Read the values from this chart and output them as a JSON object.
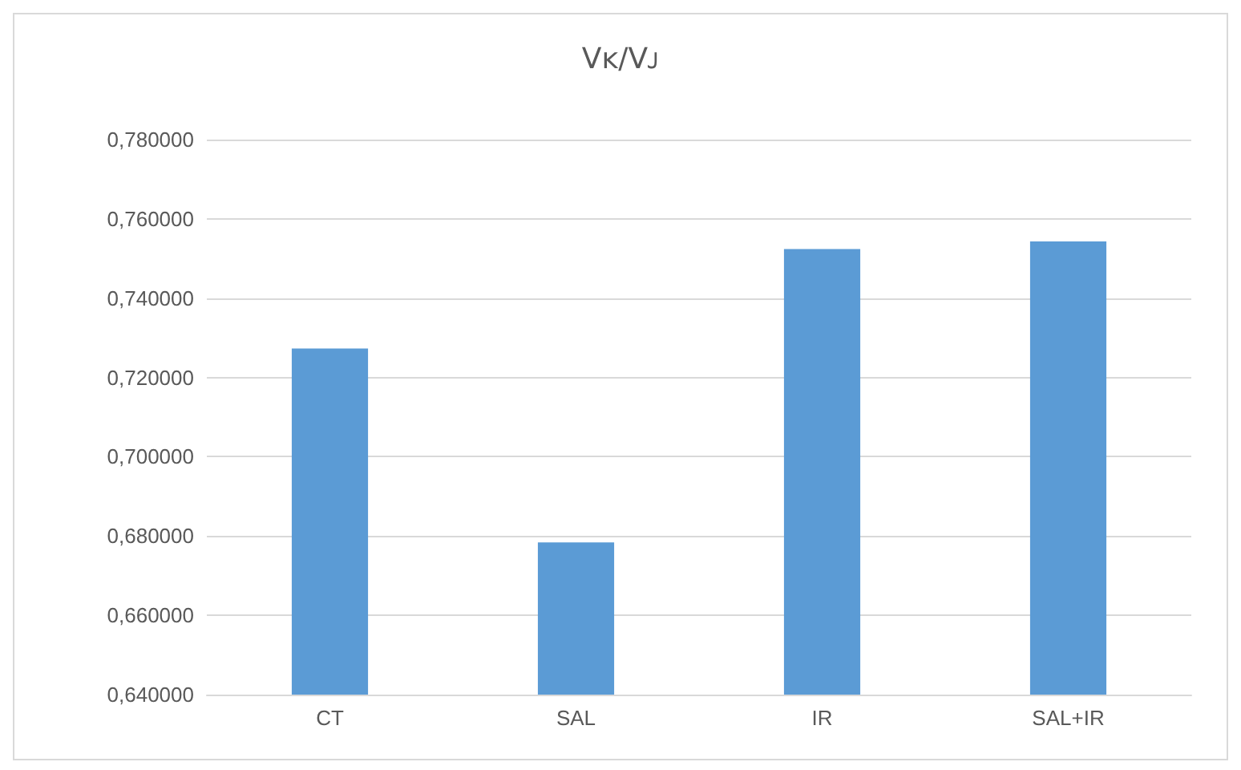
{
  "chart_data": {
    "type": "bar",
    "title": "Vᴋ/Vᴊ",
    "categories": [
      "CT",
      "SAL",
      "IR",
      "SAL+IR"
    ],
    "values": [
      0.7273,
      0.6784,
      0.7524,
      0.7543
    ],
    "color": "#5b9bd5",
    "ylim": [
      0.64,
      0.78
    ],
    "yticks": [
      {
        "value": 0.64,
        "label": "0,640000"
      },
      {
        "value": 0.66,
        "label": "0,660000"
      },
      {
        "value": 0.68,
        "label": "0,680000"
      },
      {
        "value": 0.7,
        "label": "0,700000"
      },
      {
        "value": 0.72,
        "label": "0,720000"
      },
      {
        "value": 0.74,
        "label": "0,740000"
      },
      {
        "value": 0.76,
        "label": "0,760000"
      },
      {
        "value": 0.78,
        "label": "0,780000"
      }
    ],
    "grid": "y"
  }
}
